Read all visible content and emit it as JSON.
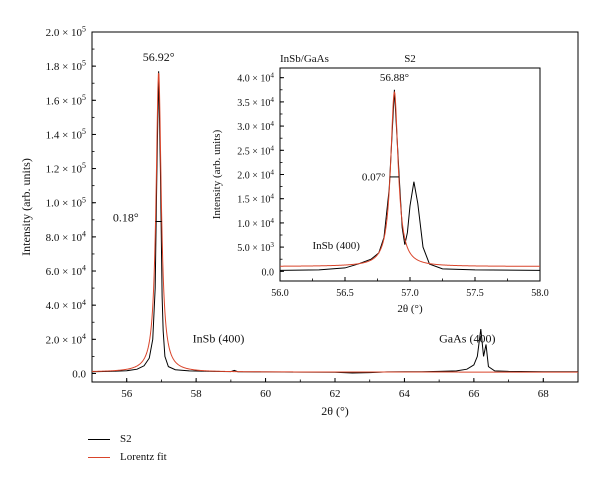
{
  "chart_data": [
    {
      "type": "line",
      "xlabel": "2θ (°)",
      "ylabel": "Intensity (arb. units)",
      "xlim": [
        55,
        69
      ],
      "ylim": [
        -5000,
        200000
      ],
      "x_ticks": [
        56,
        58,
        60,
        62,
        64,
        66,
        68
      ],
      "y_ticks": [
        {
          "value": 0,
          "mantissa": "0.0",
          "exp": ""
        },
        {
          "value": 20000,
          "mantissa": "2.0",
          "exp": "4"
        },
        {
          "value": 40000,
          "mantissa": "4.0",
          "exp": "4"
        },
        {
          "value": 60000,
          "mantissa": "6.0",
          "exp": "4"
        },
        {
          "value": 80000,
          "mantissa": "8.0",
          "exp": "4"
        },
        {
          "value": 100000,
          "mantissa": "1.0",
          "exp": "5"
        },
        {
          "value": 120000,
          "mantissa": "1.2",
          "exp": "5"
        },
        {
          "value": 140000,
          "mantissa": "1.4",
          "exp": "5"
        },
        {
          "value": 160000,
          "mantissa": "1.6",
          "exp": "5"
        },
        {
          "value": 180000,
          "mantissa": "1.8",
          "exp": "5"
        },
        {
          "value": 200000,
          "mantissa": "2.0",
          "exp": "5"
        }
      ],
      "series": [
        {
          "name": "S2",
          "color": "#000000",
          "points": [
            [
              55.0,
              1000
            ],
            [
              55.5,
              1200
            ],
            [
              56.0,
              1600
            ],
            [
              56.3,
              2500
            ],
            [
              56.5,
              4500
            ],
            [
              56.65,
              9000
            ],
            [
              56.75,
              20000
            ],
            [
              56.82,
              50000
            ],
            [
              56.87,
              120000
            ],
            [
              56.92,
              177000
            ],
            [
              56.97,
              120000
            ],
            [
              57.02,
              45000
            ],
            [
              57.05,
              25000
            ],
            [
              57.1,
              10000
            ],
            [
              57.2,
              4000
            ],
            [
              57.4,
              2200
            ],
            [
              57.8,
              1500
            ],
            [
              58.5,
              1200
            ],
            [
              59.0,
              1100
            ],
            [
              59.1,
              1800
            ],
            [
              59.2,
              1000
            ],
            [
              60.0,
              900
            ],
            [
              61.0,
              800
            ],
            [
              62.0,
              700
            ],
            [
              62.5,
              300
            ],
            [
              63.0,
              500
            ],
            [
              63.5,
              900
            ],
            [
              64.0,
              1000
            ],
            [
              64.5,
              1000
            ],
            [
              65.0,
              1200
            ],
            [
              65.5,
              1500
            ],
            [
              65.8,
              2500
            ],
            [
              66.0,
              5000
            ],
            [
              66.1,
              10000
            ],
            [
              66.2,
              26000
            ],
            [
              66.28,
              10000
            ],
            [
              66.35,
              17000
            ],
            [
              66.42,
              4000
            ],
            [
              66.6,
              1500
            ],
            [
              67.0,
              1200
            ],
            [
              68.0,
              1000
            ],
            [
              69.0,
              1000
            ]
          ]
        },
        {
          "name": "Lorentz fit",
          "color": "#d9442a",
          "center": 56.92,
          "fwhm": 0.18,
          "amplitude": 176000,
          "baseline": 800
        }
      ],
      "annotations": [
        {
          "text": "56.92°",
          "x": 56.92,
          "y": 183000
        },
        {
          "text": "0.18°",
          "x": 55.6,
          "y": 89000
        },
        {
          "text": "InSb (400)",
          "x": 57.9,
          "y": 18000
        },
        {
          "text": "GaAs (400)",
          "x": 65.0,
          "y": 18000
        }
      ],
      "fwhm_marker": {
        "x1": 56.83,
        "x2": 57.01,
        "y": 89000
      }
    },
    {
      "type": "line",
      "xlabel": "2θ (°)",
      "ylabel": "Intensity (arb. units)",
      "title_left": "InSb/GaAs",
      "title_center": "S2",
      "xlim": [
        56.0,
        58.0
      ],
      "ylim": [
        -2000,
        42000
      ],
      "x_ticks": [
        "56.0",
        "56.5",
        "57.0",
        "57.5",
        "58.0"
      ],
      "y_ticks": [
        {
          "value": 0,
          "mantissa": "0.0",
          "exp": ""
        },
        {
          "value": 5000,
          "mantissa": "5.0",
          "exp": "3"
        },
        {
          "value": 10000,
          "mantissa": "1.0",
          "exp": "4"
        },
        {
          "value": 15000,
          "mantissa": "1.5",
          "exp": "4"
        },
        {
          "value": 20000,
          "mantissa": "2.0",
          "exp": "4"
        },
        {
          "value": 25000,
          "mantissa": "2.5",
          "exp": "4"
        },
        {
          "value": 30000,
          "mantissa": "3.0",
          "exp": "4"
        },
        {
          "value": 35000,
          "mantissa": "3.5",
          "exp": "4"
        },
        {
          "value": 40000,
          "mantissa": "4.0",
          "exp": "4"
        }
      ],
      "series": [
        {
          "name": "S2",
          "color": "#000000",
          "points": [
            [
              56.0,
              200
            ],
            [
              56.3,
              300
            ],
            [
              56.5,
              700
            ],
            [
              56.6,
              1500
            ],
            [
              56.7,
              2500
            ],
            [
              56.76,
              3800
            ],
            [
              56.8,
              7000
            ],
            [
              56.84,
              17000
            ],
            [
              56.88,
              37500
            ],
            [
              56.92,
              18000
            ],
            [
              56.94,
              9000
            ],
            [
              56.96,
              5500
            ],
            [
              56.98,
              8000
            ],
            [
              57.0,
              13500
            ],
            [
              57.03,
              18500
            ],
            [
              57.06,
              14000
            ],
            [
              57.1,
              5000
            ],
            [
              57.15,
              1500
            ],
            [
              57.25,
              500
            ],
            [
              57.5,
              300
            ],
            [
              58.0,
              200
            ]
          ]
        },
        {
          "name": "Lorentz fit",
          "color": "#d9442a",
          "center": 56.88,
          "fwhm": 0.07,
          "amplitude": 36000,
          "baseline": 1000
        }
      ],
      "annotations": [
        {
          "text": "56.88°",
          "x": 56.88,
          "y": 39300
        },
        {
          "text": "0.07°",
          "x": 56.63,
          "y": 18800
        },
        {
          "text": "InSb (400)",
          "x": 56.25,
          "y": 4600
        }
      ],
      "fwhm_marker": {
        "x1": 56.845,
        "x2": 56.915,
        "y": 19500
      }
    }
  ],
  "legend": [
    {
      "label": "S2",
      "color": "#000000"
    },
    {
      "label": "Lorentz fit",
      "color": "#d9442a"
    }
  ]
}
